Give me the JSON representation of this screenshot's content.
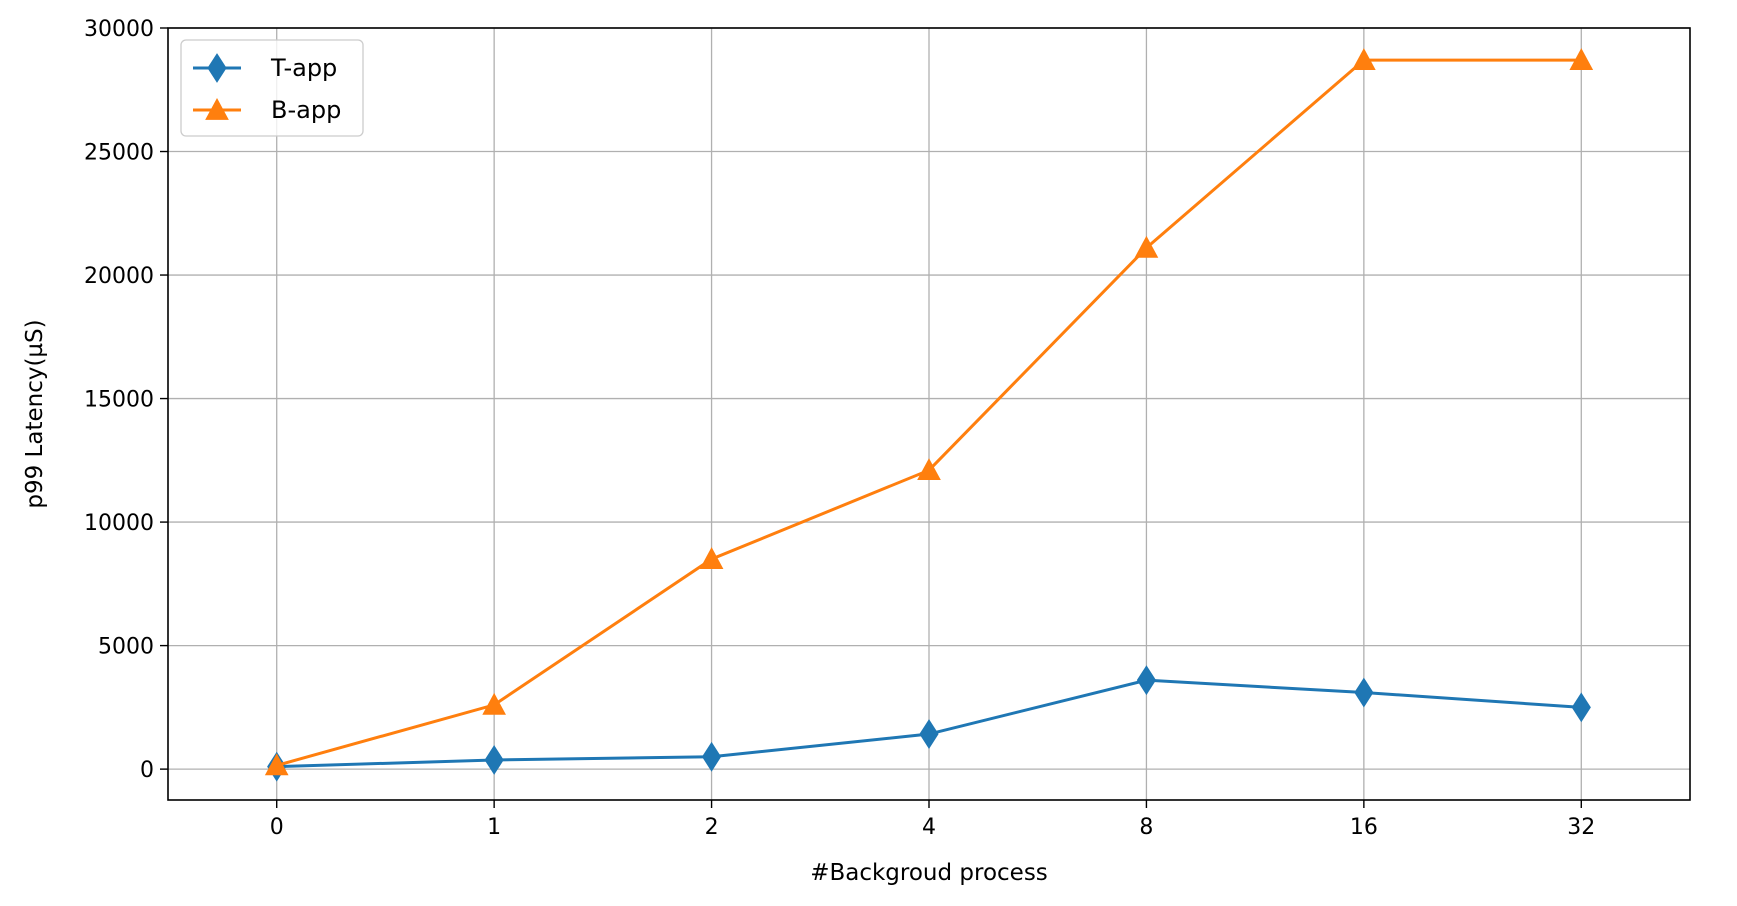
{
  "chart_data": {
    "type": "line",
    "categories": [
      "0",
      "1",
      "2",
      "4",
      "8",
      "16",
      "32"
    ],
    "series": [
      {
        "name": "T-app",
        "values": [
          100,
          370,
          500,
          1420,
          3600,
          3100,
          2500
        ],
        "color": "#1f77b4",
        "marker": "thin-diamond"
      },
      {
        "name": "B-app",
        "values": [
          150,
          2600,
          8500,
          12100,
          21100,
          28700,
          28700
        ],
        "color": "#ff7f0e",
        "marker": "triangle-up"
      }
    ],
    "xlabel": "#Backgroud process",
    "ylabel": "p99 Latency(µS)",
    "ylim": [
      -1250,
      30000
    ],
    "yticks": [
      0,
      5000,
      10000,
      15000,
      20000,
      25000,
      30000
    ],
    "grid": true,
    "legend_position": "upper-left"
  }
}
